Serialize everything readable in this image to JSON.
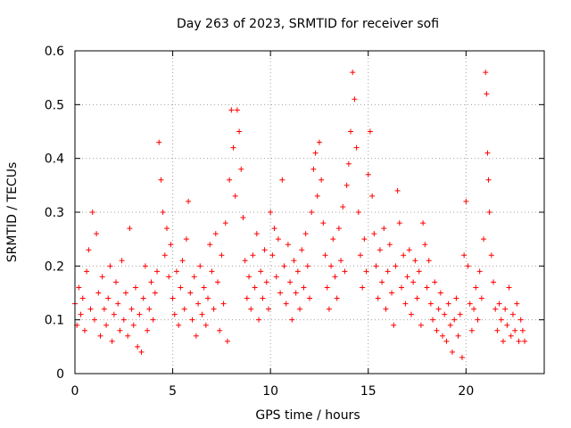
{
  "chart_data": {
    "type": "scatter",
    "title": "Day 263 of 2023, SRMTID for receiver sofi",
    "xlabel": "GPS time / hours",
    "ylabel": "SRMTID / TECUs",
    "xlim": [
      0,
      24
    ],
    "ylim": [
      0,
      0.6
    ],
    "xticks": [
      0,
      5,
      10,
      15,
      20
    ],
    "xtick_labels": [
      "0",
      "5",
      "10",
      "15",
      "20"
    ],
    "yticks": [
      0,
      0.1,
      0.2,
      0.3,
      0.4,
      0.5,
      0.6
    ],
    "ytick_labels": [
      "0",
      "0.1",
      "0.2",
      "0.3",
      "0.4",
      "0.5",
      "0.6"
    ],
    "grid": true,
    "marker": "plus",
    "color": "#ff0000",
    "series": [
      {
        "name": "SRMTID",
        "points": [
          [
            0.0,
            0.13
          ],
          [
            0.1,
            0.09
          ],
          [
            0.2,
            0.16
          ],
          [
            0.3,
            0.11
          ],
          [
            0.4,
            0.14
          ],
          [
            0.5,
            0.08
          ],
          [
            0.6,
            0.19
          ],
          [
            0.7,
            0.23
          ],
          [
            0.8,
            0.12
          ],
          [
            0.9,
            0.3
          ],
          [
            1.0,
            0.1
          ],
          [
            1.1,
            0.26
          ],
          [
            1.2,
            0.15
          ],
          [
            1.3,
            0.07
          ],
          [
            1.4,
            0.18
          ],
          [
            1.5,
            0.12
          ],
          [
            1.6,
            0.09
          ],
          [
            1.7,
            0.14
          ],
          [
            1.8,
            0.2
          ],
          [
            1.9,
            0.06
          ],
          [
            2.0,
            0.11
          ],
          [
            2.1,
            0.17
          ],
          [
            2.2,
            0.13
          ],
          [
            2.3,
            0.08
          ],
          [
            2.4,
            0.21
          ],
          [
            2.5,
            0.1
          ],
          [
            2.6,
            0.15
          ],
          [
            2.7,
            0.07
          ],
          [
            2.8,
            0.27
          ],
          [
            2.9,
            0.12
          ],
          [
            3.0,
            0.09
          ],
          [
            3.1,
            0.16
          ],
          [
            3.2,
            0.05
          ],
          [
            3.3,
            0.11
          ],
          [
            3.4,
            0.04
          ],
          [
            3.5,
            0.14
          ],
          [
            3.6,
            0.2
          ],
          [
            3.7,
            0.08
          ],
          [
            3.8,
            0.12
          ],
          [
            3.9,
            0.17
          ],
          [
            4.0,
            0.1
          ],
          [
            4.1,
            0.15
          ],
          [
            4.2,
            0.19
          ],
          [
            4.3,
            0.43
          ],
          [
            4.4,
            0.36
          ],
          [
            4.5,
            0.3
          ],
          [
            4.6,
            0.22
          ],
          [
            4.7,
            0.27
          ],
          [
            4.8,
            0.18
          ],
          [
            4.9,
            0.24
          ],
          [
            5.0,
            0.14
          ],
          [
            5.1,
            0.11
          ],
          [
            5.2,
            0.19
          ],
          [
            5.3,
            0.09
          ],
          [
            5.4,
            0.16
          ],
          [
            5.5,
            0.21
          ],
          [
            5.6,
            0.12
          ],
          [
            5.7,
            0.25
          ],
          [
            5.8,
            0.32
          ],
          [
            5.9,
            0.15
          ],
          [
            6.0,
            0.1
          ],
          [
            6.1,
            0.18
          ],
          [
            6.2,
            0.07
          ],
          [
            6.3,
            0.13
          ],
          [
            6.4,
            0.2
          ],
          [
            6.5,
            0.11
          ],
          [
            6.6,
            0.16
          ],
          [
            6.7,
            0.09
          ],
          [
            6.8,
            0.14
          ],
          [
            6.9,
            0.24
          ],
          [
            7.0,
            0.19
          ],
          [
            7.1,
            0.12
          ],
          [
            7.2,
            0.26
          ],
          [
            7.3,
            0.17
          ],
          [
            7.4,
            0.08
          ],
          [
            7.5,
            0.22
          ],
          [
            7.6,
            0.13
          ],
          [
            7.7,
            0.28
          ],
          [
            7.8,
            0.06
          ],
          [
            7.9,
            0.36
          ],
          [
            8.0,
            0.49
          ],
          [
            8.1,
            0.42
          ],
          [
            8.2,
            0.33
          ],
          [
            8.3,
            0.49
          ],
          [
            8.4,
            0.45
          ],
          [
            8.5,
            0.38
          ],
          [
            8.6,
            0.29
          ],
          [
            8.7,
            0.21
          ],
          [
            8.8,
            0.14
          ],
          [
            8.9,
            0.18
          ],
          [
            9.0,
            0.12
          ],
          [
            9.1,
            0.22
          ],
          [
            9.2,
            0.16
          ],
          [
            9.3,
            0.26
          ],
          [
            9.4,
            0.1
          ],
          [
            9.5,
            0.19
          ],
          [
            9.6,
            0.14
          ],
          [
            9.7,
            0.23
          ],
          [
            9.8,
            0.17
          ],
          [
            9.9,
            0.12
          ],
          [
            10.0,
            0.3
          ],
          [
            10.1,
            0.22
          ],
          [
            10.2,
            0.27
          ],
          [
            10.3,
            0.18
          ],
          [
            10.4,
            0.25
          ],
          [
            10.5,
            0.15
          ],
          [
            10.6,
            0.36
          ],
          [
            10.7,
            0.2
          ],
          [
            10.8,
            0.13
          ],
          [
            10.9,
            0.24
          ],
          [
            11.0,
            0.17
          ],
          [
            11.1,
            0.1
          ],
          [
            11.2,
            0.21
          ],
          [
            11.3,
            0.15
          ],
          [
            11.4,
            0.19
          ],
          [
            11.5,
            0.12
          ],
          [
            11.6,
            0.23
          ],
          [
            11.7,
            0.16
          ],
          [
            11.8,
            0.26
          ],
          [
            11.9,
            0.2
          ],
          [
            12.0,
            0.14
          ],
          [
            12.1,
            0.3
          ],
          [
            12.2,
            0.38
          ],
          [
            12.3,
            0.41
          ],
          [
            12.4,
            0.33
          ],
          [
            12.5,
            0.43
          ],
          [
            12.6,
            0.36
          ],
          [
            12.7,
            0.28
          ],
          [
            12.8,
            0.22
          ],
          [
            12.9,
            0.16
          ],
          [
            13.0,
            0.12
          ],
          [
            13.1,
            0.2
          ],
          [
            13.2,
            0.25
          ],
          [
            13.3,
            0.18
          ],
          [
            13.4,
            0.14
          ],
          [
            13.5,
            0.27
          ],
          [
            13.6,
            0.21
          ],
          [
            13.7,
            0.31
          ],
          [
            13.8,
            0.19
          ],
          [
            13.9,
            0.35
          ],
          [
            14.0,
            0.39
          ],
          [
            14.1,
            0.45
          ],
          [
            14.2,
            0.56
          ],
          [
            14.3,
            0.51
          ],
          [
            14.4,
            0.42
          ],
          [
            14.5,
            0.3
          ],
          [
            14.6,
            0.22
          ],
          [
            14.7,
            0.16
          ],
          [
            14.8,
            0.25
          ],
          [
            14.9,
            0.19
          ],
          [
            15.0,
            0.37
          ],
          [
            15.1,
            0.45
          ],
          [
            15.2,
            0.33
          ],
          [
            15.3,
            0.26
          ],
          [
            15.4,
            0.2
          ],
          [
            15.5,
            0.14
          ],
          [
            15.6,
            0.23
          ],
          [
            15.7,
            0.17
          ],
          [
            15.8,
            0.27
          ],
          [
            15.9,
            0.12
          ],
          [
            16.0,
            0.19
          ],
          [
            16.1,
            0.24
          ],
          [
            16.2,
            0.15
          ],
          [
            16.3,
            0.09
          ],
          [
            16.4,
            0.2
          ],
          [
            16.5,
            0.34
          ],
          [
            16.6,
            0.28
          ],
          [
            16.7,
            0.16
          ],
          [
            16.8,
            0.22
          ],
          [
            16.9,
            0.13
          ],
          [
            17.0,
            0.18
          ],
          [
            17.1,
            0.23
          ],
          [
            17.2,
            0.11
          ],
          [
            17.3,
            0.17
          ],
          [
            17.4,
            0.21
          ],
          [
            17.5,
            0.14
          ],
          [
            17.6,
            0.19
          ],
          [
            17.7,
            0.09
          ],
          [
            17.8,
            0.28
          ],
          [
            17.9,
            0.24
          ],
          [
            18.0,
            0.16
          ],
          [
            18.1,
            0.21
          ],
          [
            18.2,
            0.13
          ],
          [
            18.3,
            0.1
          ],
          [
            18.4,
            0.17
          ],
          [
            18.5,
            0.08
          ],
          [
            18.6,
            0.12
          ],
          [
            18.7,
            0.15
          ],
          [
            18.8,
            0.07
          ],
          [
            18.9,
            0.11
          ],
          [
            19.0,
            0.06
          ],
          [
            19.1,
            0.13
          ],
          [
            19.2,
            0.09
          ],
          [
            19.3,
            0.04
          ],
          [
            19.4,
            0.1
          ],
          [
            19.5,
            0.14
          ],
          [
            19.6,
            0.07
          ],
          [
            19.7,
            0.11
          ],
          [
            19.8,
            0.03
          ],
          [
            19.9,
            0.22
          ],
          [
            20.0,
            0.32
          ],
          [
            20.1,
            0.2
          ],
          [
            20.2,
            0.13
          ],
          [
            20.3,
            0.08
          ],
          [
            20.4,
            0.12
          ],
          [
            20.5,
            0.16
          ],
          [
            20.6,
            0.1
          ],
          [
            20.7,
            0.19
          ],
          [
            20.8,
            0.14
          ],
          [
            20.9,
            0.25
          ],
          [
            21.0,
            0.56
          ],
          [
            21.05,
            0.52
          ],
          [
            21.1,
            0.41
          ],
          [
            21.15,
            0.36
          ],
          [
            21.2,
            0.3
          ],
          [
            21.3,
            0.22
          ],
          [
            21.4,
            0.17
          ],
          [
            21.5,
            0.12
          ],
          [
            21.6,
            0.08
          ],
          [
            21.7,
            0.13
          ],
          [
            21.8,
            0.1
          ],
          [
            21.9,
            0.06
          ],
          [
            22.0,
            0.12
          ],
          [
            22.1,
            0.09
          ],
          [
            22.2,
            0.16
          ],
          [
            22.3,
            0.07
          ],
          [
            22.4,
            0.11
          ],
          [
            22.5,
            0.08
          ],
          [
            22.6,
            0.13
          ],
          [
            22.7,
            0.06
          ],
          [
            22.8,
            0.1
          ],
          [
            22.9,
            0.08
          ],
          [
            23.0,
            0.06
          ]
        ]
      }
    ]
  }
}
